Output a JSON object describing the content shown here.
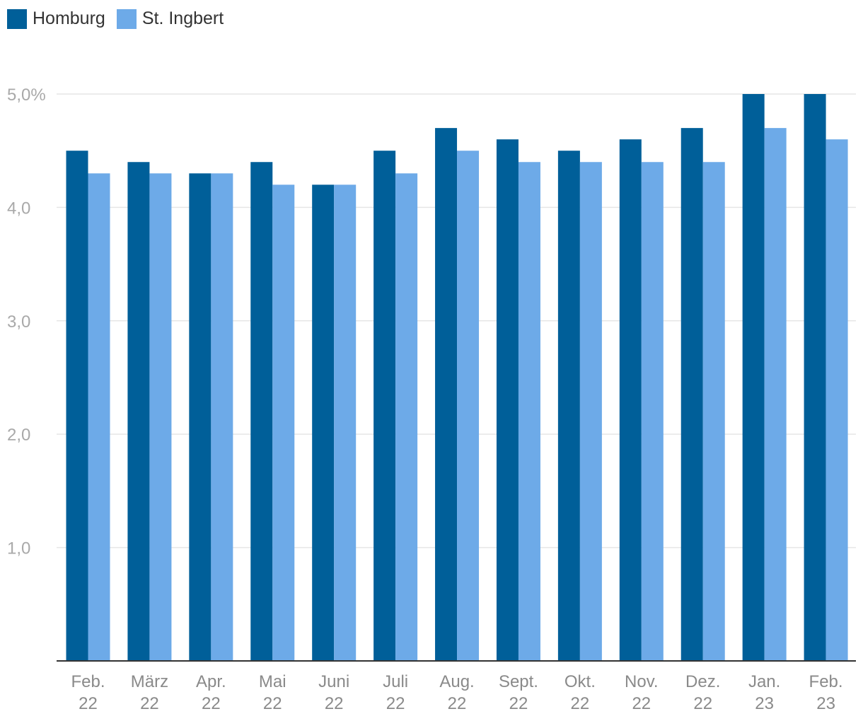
{
  "chart_data": {
    "type": "bar",
    "title": "",
    "xlabel": "",
    "ylabel": "",
    "categories": [
      [
        "Feb.",
        "22"
      ],
      [
        "März",
        "22"
      ],
      [
        "Apr.",
        "22"
      ],
      [
        "Mai",
        "22"
      ],
      [
        "Juni",
        "22"
      ],
      [
        "Juli",
        "22"
      ],
      [
        "Aug.",
        "22"
      ],
      [
        "Sept.",
        "22"
      ],
      [
        "Okt.",
        "22"
      ],
      [
        "Nov.",
        "22"
      ],
      [
        "Dez.",
        "22"
      ],
      [
        "Jan.",
        "23"
      ],
      [
        "Feb.",
        "23"
      ]
    ],
    "series": [
      {
        "name": "Homburg",
        "color": "#005f99",
        "values": [
          4.5,
          4.4,
          4.3,
          4.4,
          4.2,
          4.5,
          4.7,
          4.6,
          4.5,
          4.6,
          4.7,
          5.0,
          5.0
        ]
      },
      {
        "name": "St. Ingbert",
        "color": "#6daae8",
        "values": [
          4.3,
          4.3,
          4.3,
          4.2,
          4.2,
          4.3,
          4.5,
          4.4,
          4.4,
          4.4,
          4.4,
          4.7,
          4.6
        ]
      }
    ],
    "ylim": [
      0,
      5
    ],
    "yticks": [
      1,
      2,
      3,
      4,
      5
    ],
    "ytick_labels": [
      "1,0",
      "2,0",
      "3,0",
      "4,0",
      "5,0%"
    ],
    "grid": true,
    "legend": "top-left"
  }
}
